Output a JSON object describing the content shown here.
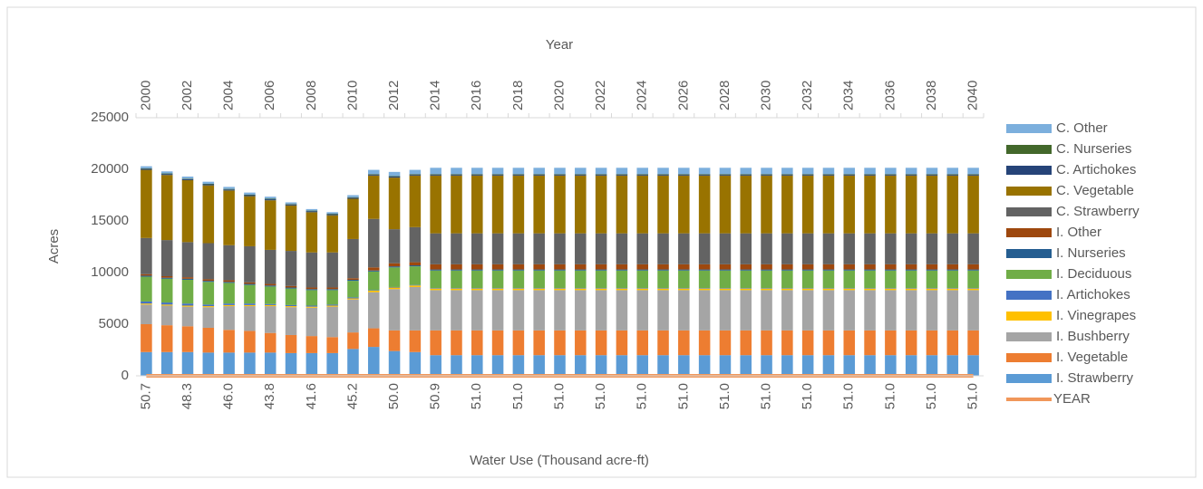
{
  "chart_data": {
    "type": "stacked_bar",
    "title": "Year",
    "x_label": "Water Use (Thousand acre-ft)",
    "y_label": "Acres",
    "categories": [
      "50.7",
      null,
      "48.3",
      null,
      "46.0",
      null,
      "43.8",
      null,
      "41.6",
      null,
      "45.2",
      null,
      "50.0",
      null,
      "50.9",
      null,
      "51.0",
      null,
      "51.0",
      null,
      "51.0",
      null,
      "51.0",
      null,
      "51.0",
      null,
      "51.0",
      null,
      "51.0",
      null,
      "51.0",
      null,
      "51.0",
      null,
      "51.0",
      null,
      "51.0",
      null,
      "51.0",
      null,
      "51.0"
    ],
    "top_categories": [
      2000,
      null,
      2002,
      null,
      2004,
      null,
      2006,
      null,
      2008,
      null,
      2010,
      null,
      2012,
      null,
      2014,
      null,
      2016,
      null,
      2018,
      null,
      2020,
      null,
      2022,
      null,
      2024,
      null,
      2026,
      null,
      2028,
      null,
      2030,
      null,
      2032,
      null,
      2034,
      null,
      2036,
      null,
      2038,
      null,
      2040
    ],
    "ylim": [
      0,
      25000
    ],
    "yticks": [
      0,
      5000,
      10000,
      15000,
      20000,
      25000
    ],
    "grid": false,
    "legend": "right",
    "series": [
      {
        "name": "I. Strawberry",
        "color": "#5b9bd5",
        "values": [
          2300,
          2300,
          2300,
          2250,
          2250,
          2250,
          2250,
          2200,
          2200,
          2200,
          2600,
          2800,
          2400,
          2300,
          2000,
          2000,
          2000,
          2000,
          2000,
          2000,
          2000,
          2000,
          2000,
          2000,
          2000,
          2000,
          2000,
          2000,
          2000,
          2000,
          2000,
          2000,
          2000,
          2000,
          2000,
          2000,
          2000,
          2000,
          2000,
          2000,
          2000
        ]
      },
      {
        "name": "I. Vegetable",
        "color": "#ed7d31",
        "values": [
          2700,
          2600,
          2500,
          2400,
          2200,
          2100,
          1900,
          1750,
          1650,
          1550,
          1600,
          1800,
          2000,
          2100,
          2400,
          2400,
          2400,
          2400,
          2400,
          2400,
          2400,
          2400,
          2400,
          2400,
          2400,
          2400,
          2400,
          2400,
          2400,
          2400,
          2400,
          2400,
          2400,
          2400,
          2400,
          2400,
          2400,
          2400,
          2400,
          2400,
          2400
        ]
      },
      {
        "name": "I. Bushberry",
        "color": "#a5a5a5",
        "values": [
          1900,
          1900,
          1900,
          2000,
          2300,
          2400,
          2600,
          2700,
          2750,
          2950,
          3200,
          3500,
          4000,
          4200,
          3900,
          3900,
          3900,
          3900,
          3900,
          3900,
          3900,
          3900,
          3900,
          3900,
          3900,
          3900,
          3900,
          3900,
          3900,
          3900,
          3900,
          3900,
          3900,
          3900,
          3900,
          3900,
          3900,
          3900,
          3900,
          3900,
          3900
        ]
      },
      {
        "name": "I. Vinegrapes",
        "color": "#ffc000",
        "values": [
          100,
          100,
          100,
          100,
          100,
          100,
          100,
          100,
          100,
          100,
          100,
          150,
          150,
          150,
          150,
          150,
          150,
          150,
          150,
          150,
          150,
          150,
          150,
          150,
          150,
          150,
          150,
          150,
          150,
          150,
          150,
          150,
          150,
          150,
          150,
          150,
          150,
          150,
          150,
          150,
          150
        ]
      },
      {
        "name": "I. Artichokes",
        "color": "#4472c4",
        "values": [
          200,
          200,
          200,
          150,
          150,
          150,
          100,
          100,
          100,
          100,
          100,
          50,
          50,
          50,
          50,
          50,
          50,
          50,
          50,
          50,
          50,
          50,
          50,
          50,
          50,
          50,
          50,
          50,
          50,
          50,
          50,
          50,
          50,
          50,
          50,
          50,
          50,
          50,
          50,
          50,
          50
        ]
      },
      {
        "name": "I. Deciduous",
        "color": "#70ad47",
        "values": [
          2400,
          2300,
          2300,
          2200,
          2000,
          1800,
          1700,
          1600,
          1500,
          1400,
          1600,
          1800,
          1900,
          1800,
          1700,
          1700,
          1700,
          1700,
          1700,
          1700,
          1700,
          1700,
          1700,
          1700,
          1700,
          1700,
          1700,
          1700,
          1700,
          1700,
          1700,
          1700,
          1700,
          1700,
          1700,
          1700,
          1700,
          1700,
          1700,
          1700,
          1700
        ]
      },
      {
        "name": "I. Nurseries",
        "color": "#255e91",
        "values": [
          100,
          100,
          100,
          100,
          100,
          100,
          100,
          100,
          100,
          100,
          100,
          100,
          100,
          100,
          100,
          100,
          100,
          100,
          100,
          100,
          100,
          100,
          100,
          100,
          100,
          100,
          100,
          100,
          100,
          100,
          100,
          100,
          100,
          100,
          100,
          100,
          100,
          100,
          100,
          100,
          100
        ]
      },
      {
        "name": "I. Other",
        "color": "#9e480e",
        "values": [
          150,
          150,
          150,
          150,
          150,
          150,
          150,
          150,
          150,
          150,
          150,
          300,
          300,
          300,
          500,
          500,
          500,
          500,
          500,
          500,
          500,
          500,
          500,
          500,
          500,
          500,
          500,
          500,
          500,
          500,
          500,
          500,
          500,
          500,
          500,
          500,
          500,
          500,
          500,
          500,
          500
        ]
      },
      {
        "name": "C. Strawberry",
        "color": "#636363",
        "values": [
          3500,
          3500,
          3400,
          3500,
          3400,
          3500,
          3300,
          3400,
          3400,
          3400,
          3800,
          4700,
          3300,
          3400,
          3000,
          3000,
          3000,
          3000,
          3000,
          3000,
          3000,
          3000,
          3000,
          3000,
          3000,
          3000,
          3000,
          3000,
          3000,
          3000,
          3000,
          3000,
          3000,
          3000,
          3000,
          3000,
          3000,
          3000,
          3000,
          3000,
          3000
        ]
      },
      {
        "name": "C. Vegetable",
        "color": "#997300",
        "values": [
          6600,
          6300,
          6000,
          5600,
          5300,
          4850,
          4800,
          4400,
          3900,
          3600,
          3900,
          4200,
          5000,
          5000,
          5600,
          5600,
          5600,
          5600,
          5600,
          5600,
          5600,
          5600,
          5600,
          5600,
          5600,
          5600,
          5600,
          5600,
          5600,
          5600,
          5600,
          5600,
          5600,
          5600,
          5600,
          5600,
          5600,
          5600,
          5600,
          5600,
          5600
        ]
      },
      {
        "name": "C. Artichokes",
        "color": "#264478",
        "values": [
          100,
          100,
          100,
          100,
          100,
          100,
          100,
          100,
          100,
          100,
          100,
          100,
          100,
          100,
          100,
          100,
          100,
          100,
          100,
          100,
          100,
          100,
          100,
          100,
          100,
          100,
          100,
          100,
          100,
          100,
          100,
          100,
          100,
          100,
          100,
          100,
          100,
          100,
          100,
          100,
          100
        ]
      },
      {
        "name": "C. Nurseries",
        "color": "#43682b",
        "values": [
          50,
          50,
          50,
          50,
          50,
          50,
          50,
          50,
          50,
          50,
          50,
          50,
          50,
          50,
          50,
          50,
          50,
          50,
          50,
          50,
          50,
          50,
          50,
          50,
          50,
          50,
          50,
          50,
          50,
          50,
          50,
          50,
          50,
          50,
          50,
          50,
          50,
          50,
          50,
          50,
          50
        ]
      },
      {
        "name": "C. Other",
        "color": "#7cafdd",
        "values": [
          200,
          200,
          200,
          200,
          200,
          200,
          200,
          150,
          150,
          150,
          200,
          400,
          400,
          400,
          600,
          600,
          600,
          600,
          600,
          600,
          600,
          600,
          600,
          600,
          600,
          600,
          600,
          600,
          600,
          600,
          600,
          600,
          600,
          600,
          600,
          600,
          600,
          600,
          600,
          600,
          600
        ]
      },
      {
        "name": "YEAR",
        "color": "#f1975a",
        "line": true,
        "values": [
          0,
          0,
          0,
          0,
          0,
          0,
          0,
          0,
          0,
          0,
          0,
          0,
          0,
          0,
          0,
          0,
          0,
          0,
          0,
          0,
          0,
          0,
          0,
          0,
          0,
          0,
          0,
          0,
          0,
          0,
          0,
          0,
          0,
          0,
          0,
          0,
          0,
          0,
          0,
          0,
          0
        ]
      }
    ]
  }
}
